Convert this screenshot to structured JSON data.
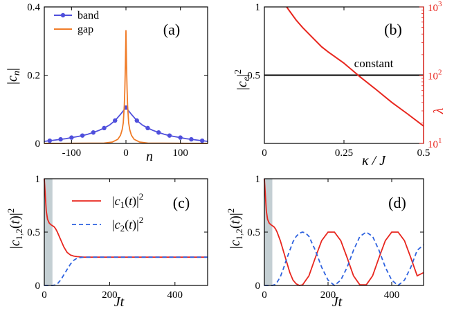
{
  "chart_data": [
    {
      "panel": "(a)",
      "type": "line",
      "xlabel": "n",
      "ylabel": "|c_n|",
      "xlim": [
        -150,
        150
      ],
      "ylim": [
        0,
        0.4
      ],
      "xticks": [
        -100,
        0,
        100
      ],
      "xtick_labels": [
        "-100",
        "0",
        "100"
      ],
      "yticks": [
        0,
        0.2,
        0.4
      ],
      "ytick_labels": [
        "0",
        "0.2",
        "0.4"
      ],
      "legend_position": "top-left",
      "series": [
        {
          "name": "band",
          "color": "#4f4fdc",
          "markers": true,
          "x": [
            -150,
            -140,
            -130,
            -120,
            -110,
            -100,
            -90,
            -80,
            -70,
            -60,
            -50,
            -40,
            -30,
            -20,
            -10,
            0,
            10,
            20,
            30,
            40,
            50,
            60,
            70,
            80,
            90,
            100,
            110,
            120,
            130,
            140,
            150
          ],
          "y": [
            0.006,
            0.008,
            0.01,
            0.012,
            0.014,
            0.017,
            0.02,
            0.023,
            0.027,
            0.032,
            0.038,
            0.045,
            0.054,
            0.067,
            0.085,
            0.105,
            0.085,
            0.067,
            0.054,
            0.045,
            0.038,
            0.032,
            0.027,
            0.023,
            0.02,
            0.017,
            0.014,
            0.012,
            0.01,
            0.008,
            0.006
          ],
          "marker_x": [
            -140,
            -120,
            -100,
            -80,
            -60,
            -40,
            -20,
            0,
            20,
            40,
            60,
            80,
            100,
            120,
            140
          ]
        },
        {
          "name": "gap",
          "color": "#f07c28",
          "markers": false,
          "x": [
            -150,
            -40,
            -25,
            -15,
            -10,
            -7,
            -5,
            -3,
            -2,
            -1,
            0,
            1,
            2,
            3,
            5,
            7,
            10,
            15,
            25,
            40,
            150
          ],
          "y": [
            0,
            0.001,
            0.004,
            0.012,
            0.024,
            0.04,
            0.06,
            0.11,
            0.16,
            0.23,
            0.332,
            0.23,
            0.16,
            0.11,
            0.06,
            0.04,
            0.024,
            0.012,
            0.004,
            0.001,
            0
          ]
        }
      ]
    },
    {
      "panel": "(b)",
      "type": "line",
      "xlabel": "κ / J",
      "ylabel": "|c_e|^2",
      "ylabel_right": "λ",
      "xlim": [
        0,
        0.5
      ],
      "ylim": [
        0,
        1
      ],
      "ylim_right_log": [
        10,
        1000
      ],
      "xticks": [
        0,
        0.25,
        0.5
      ],
      "xtick_labels": [
        "0",
        "0.25",
        "0.5"
      ],
      "yticks": [
        0.5,
        1
      ],
      "ytick_labels": [
        "0.5",
        "1"
      ],
      "yticks_right": [
        10,
        100,
        1000
      ],
      "ytick_labels_right": [
        "10",
        "10",
        "10"
      ],
      "ytick_exponents_right": [
        "1",
        "2",
        "3"
      ],
      "annotation": "constant",
      "series": [
        {
          "name": "constant",
          "color": "#000000",
          "axis": "left",
          "x": [
            0,
            0.5
          ],
          "y": [
            0.5,
            0.5
          ]
        },
        {
          "name": "lambda",
          "color": "#e8261e",
          "axis": "right",
          "x": [
            0.07,
            0.08,
            0.1,
            0.12,
            0.15,
            0.18,
            0.2,
            0.25,
            0.3,
            0.35,
            0.4,
            0.45,
            0.5
          ],
          "y": [
            1000,
            860,
            640,
            500,
            360,
            260,
            220,
            150,
            95,
            62,
            40,
            27,
            18
          ]
        }
      ]
    },
    {
      "panel": "(c)",
      "type": "line",
      "xlabel": "Jt",
      "ylabel": "|c_{1,2}(t)|^2",
      "xlim": [
        0,
        500
      ],
      "ylim": [
        0,
        1
      ],
      "xticks": [
        0,
        200,
        400
      ],
      "xtick_labels": [
        "0",
        "200",
        "400"
      ],
      "yticks": [
        0,
        0.5,
        1
      ],
      "ytick_labels": [
        "0",
        "0.5",
        "1"
      ],
      "shaded_x": [
        0,
        25
      ],
      "legend_position": "top-right",
      "series": [
        {
          "name": "|c_1(t)|^2",
          "color": "#e8261e",
          "dash": false,
          "x": [
            0,
            3,
            6,
            10,
            15,
            20,
            25,
            30,
            35,
            40,
            50,
            60,
            70,
            80,
            90,
            100,
            120,
            150,
            200,
            300,
            400,
            500
          ],
          "y": [
            1.0,
            0.85,
            0.7,
            0.62,
            0.585,
            0.57,
            0.56,
            0.55,
            0.53,
            0.5,
            0.43,
            0.36,
            0.31,
            0.285,
            0.275,
            0.27,
            0.265,
            0.265,
            0.265,
            0.265,
            0.265,
            0.265
          ]
        },
        {
          "name": "|c_2(t)|^2",
          "color": "#2f63e0",
          "dash": true,
          "x": [
            0,
            25,
            35,
            40,
            50,
            60,
            70,
            80,
            90,
            100,
            110,
            120,
            150,
            200,
            300,
            400,
            500
          ],
          "y": [
            0,
            0,
            0.005,
            0.015,
            0.05,
            0.1,
            0.15,
            0.2,
            0.235,
            0.255,
            0.262,
            0.265,
            0.265,
            0.265,
            0.265,
            0.265,
            0.265
          ]
        }
      ]
    },
    {
      "panel": "(d)",
      "type": "line",
      "xlabel": "Jt",
      "ylabel": "|c_{1,2}(t)|^2",
      "xlim": [
        0,
        500
      ],
      "ylim": [
        0,
        1
      ],
      "xticks": [
        0,
        200,
        400
      ],
      "xtick_labels": [
        "0",
        "200",
        "400"
      ],
      "yticks": [
        0,
        0.5,
        1
      ],
      "ytick_labels": [
        "0",
        "0.5",
        "1"
      ],
      "shaded_x": [
        0,
        25
      ],
      "series": [
        {
          "name": "|c_1(t)|^2",
          "color": "#e8261e",
          "dash": false,
          "x": [
            0,
            3,
            6,
            10,
            15,
            20,
            25,
            30,
            35,
            40,
            50,
            60,
            70,
            80,
            90,
            100,
            110,
            120,
            140,
            160,
            180,
            200,
            220,
            240,
            260,
            280,
            300,
            320,
            340,
            360,
            380,
            400,
            420,
            440,
            460,
            480,
            500
          ],
          "y": [
            1.0,
            0.85,
            0.7,
            0.62,
            0.585,
            0.57,
            0.56,
            0.55,
            0.53,
            0.5,
            0.42,
            0.32,
            0.22,
            0.12,
            0.05,
            0.015,
            0.0,
            0.005,
            0.09,
            0.26,
            0.42,
            0.5,
            0.5,
            0.42,
            0.26,
            0.09,
            0.005,
            0.005,
            0.09,
            0.26,
            0.42,
            0.5,
            0.5,
            0.42,
            0.26,
            0.09,
            0.12
          ]
        },
        {
          "name": "|c_2(t)|^2",
          "color": "#2f63e0",
          "dash": true,
          "x": [
            0,
            25,
            35,
            40,
            50,
            60,
            70,
            80,
            90,
            100,
            110,
            120,
            130,
            140,
            160,
            180,
            200,
            220,
            240,
            260,
            280,
            300,
            320,
            340,
            360,
            380,
            400,
            420,
            440,
            460,
            480,
            500
          ],
          "y": [
            0,
            0,
            0.01,
            0.03,
            0.08,
            0.16,
            0.25,
            0.33,
            0.41,
            0.46,
            0.49,
            0.5,
            0.49,
            0.46,
            0.33,
            0.17,
            0.05,
            0.0,
            0.05,
            0.17,
            0.33,
            0.46,
            0.5,
            0.46,
            0.33,
            0.17,
            0.05,
            0.0,
            0.05,
            0.17,
            0.33,
            0.38
          ]
        }
      ]
    }
  ],
  "labels": {
    "a_ytick_0": "0",
    "a_ytick_02": "0.2",
    "a_ytick_04": "0.4",
    "b_constant": "constant"
  }
}
